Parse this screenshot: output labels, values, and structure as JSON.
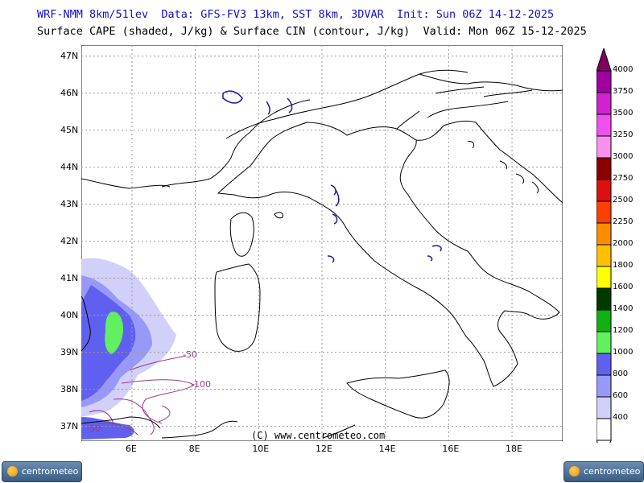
{
  "header": {
    "line1": "WRF-NMM 8km/51lev  Data: GFS-FV3 13km, SST 8km, 3DVAR  Init: Sun 06Z 14-12-2025",
    "line2": "Surface CAPE (shaded, J/kg) & Surface CIN (contour, J/kg)  Valid: Mon 06Z 15-12-2025"
  },
  "map": {
    "lat_labels": [
      "47N",
      "46N",
      "45N",
      "44N",
      "43N",
      "42N",
      "41N",
      "40N",
      "39N",
      "38N",
      "37N"
    ],
    "lon_labels": [
      "6E",
      "8E",
      "10E",
      "12E",
      "14E",
      "16E",
      "18E"
    ],
    "lat_values": [
      47,
      46,
      45,
      44,
      43,
      42,
      41,
      40,
      39,
      38,
      37
    ],
    "lon_values": [
      6,
      8,
      10,
      12,
      14,
      16,
      18
    ],
    "lat_range": [
      36.6,
      47.3
    ],
    "lon_range": [
      4.4,
      19.6
    ],
    "cin_labels": [
      "-50",
      "-100",
      "-50"
    ],
    "credit": "(C) www.centrometeo.com",
    "colors": {
      "coast": "#000000",
      "lakes": "#1a1aa0",
      "cin": "#9a3a8a"
    }
  },
  "colorbar": {
    "levels": [
      "4000",
      "3750",
      "3500",
      "3250",
      "3000",
      "2750",
      "2500",
      "2250",
      "2000",
      "1800",
      "1600",
      "1400",
      "1200",
      "1000",
      "800",
      "600",
      "400"
    ],
    "colors": [
      "#a000a0",
      "#d020d0",
      "#f050f0",
      "#f890f0",
      "#8b0000",
      "#dd1010",
      "#ff4000",
      "#ff8c00",
      "#ffc000",
      "#ffff00",
      "#003a00",
      "#10b010",
      "#60f060",
      "#6060f0",
      "#9898f8",
      "#d0d0f8",
      "#ffffff"
    ]
  },
  "logo": {
    "left_text": "centrometeo",
    "right_text": "centrometeo"
  }
}
